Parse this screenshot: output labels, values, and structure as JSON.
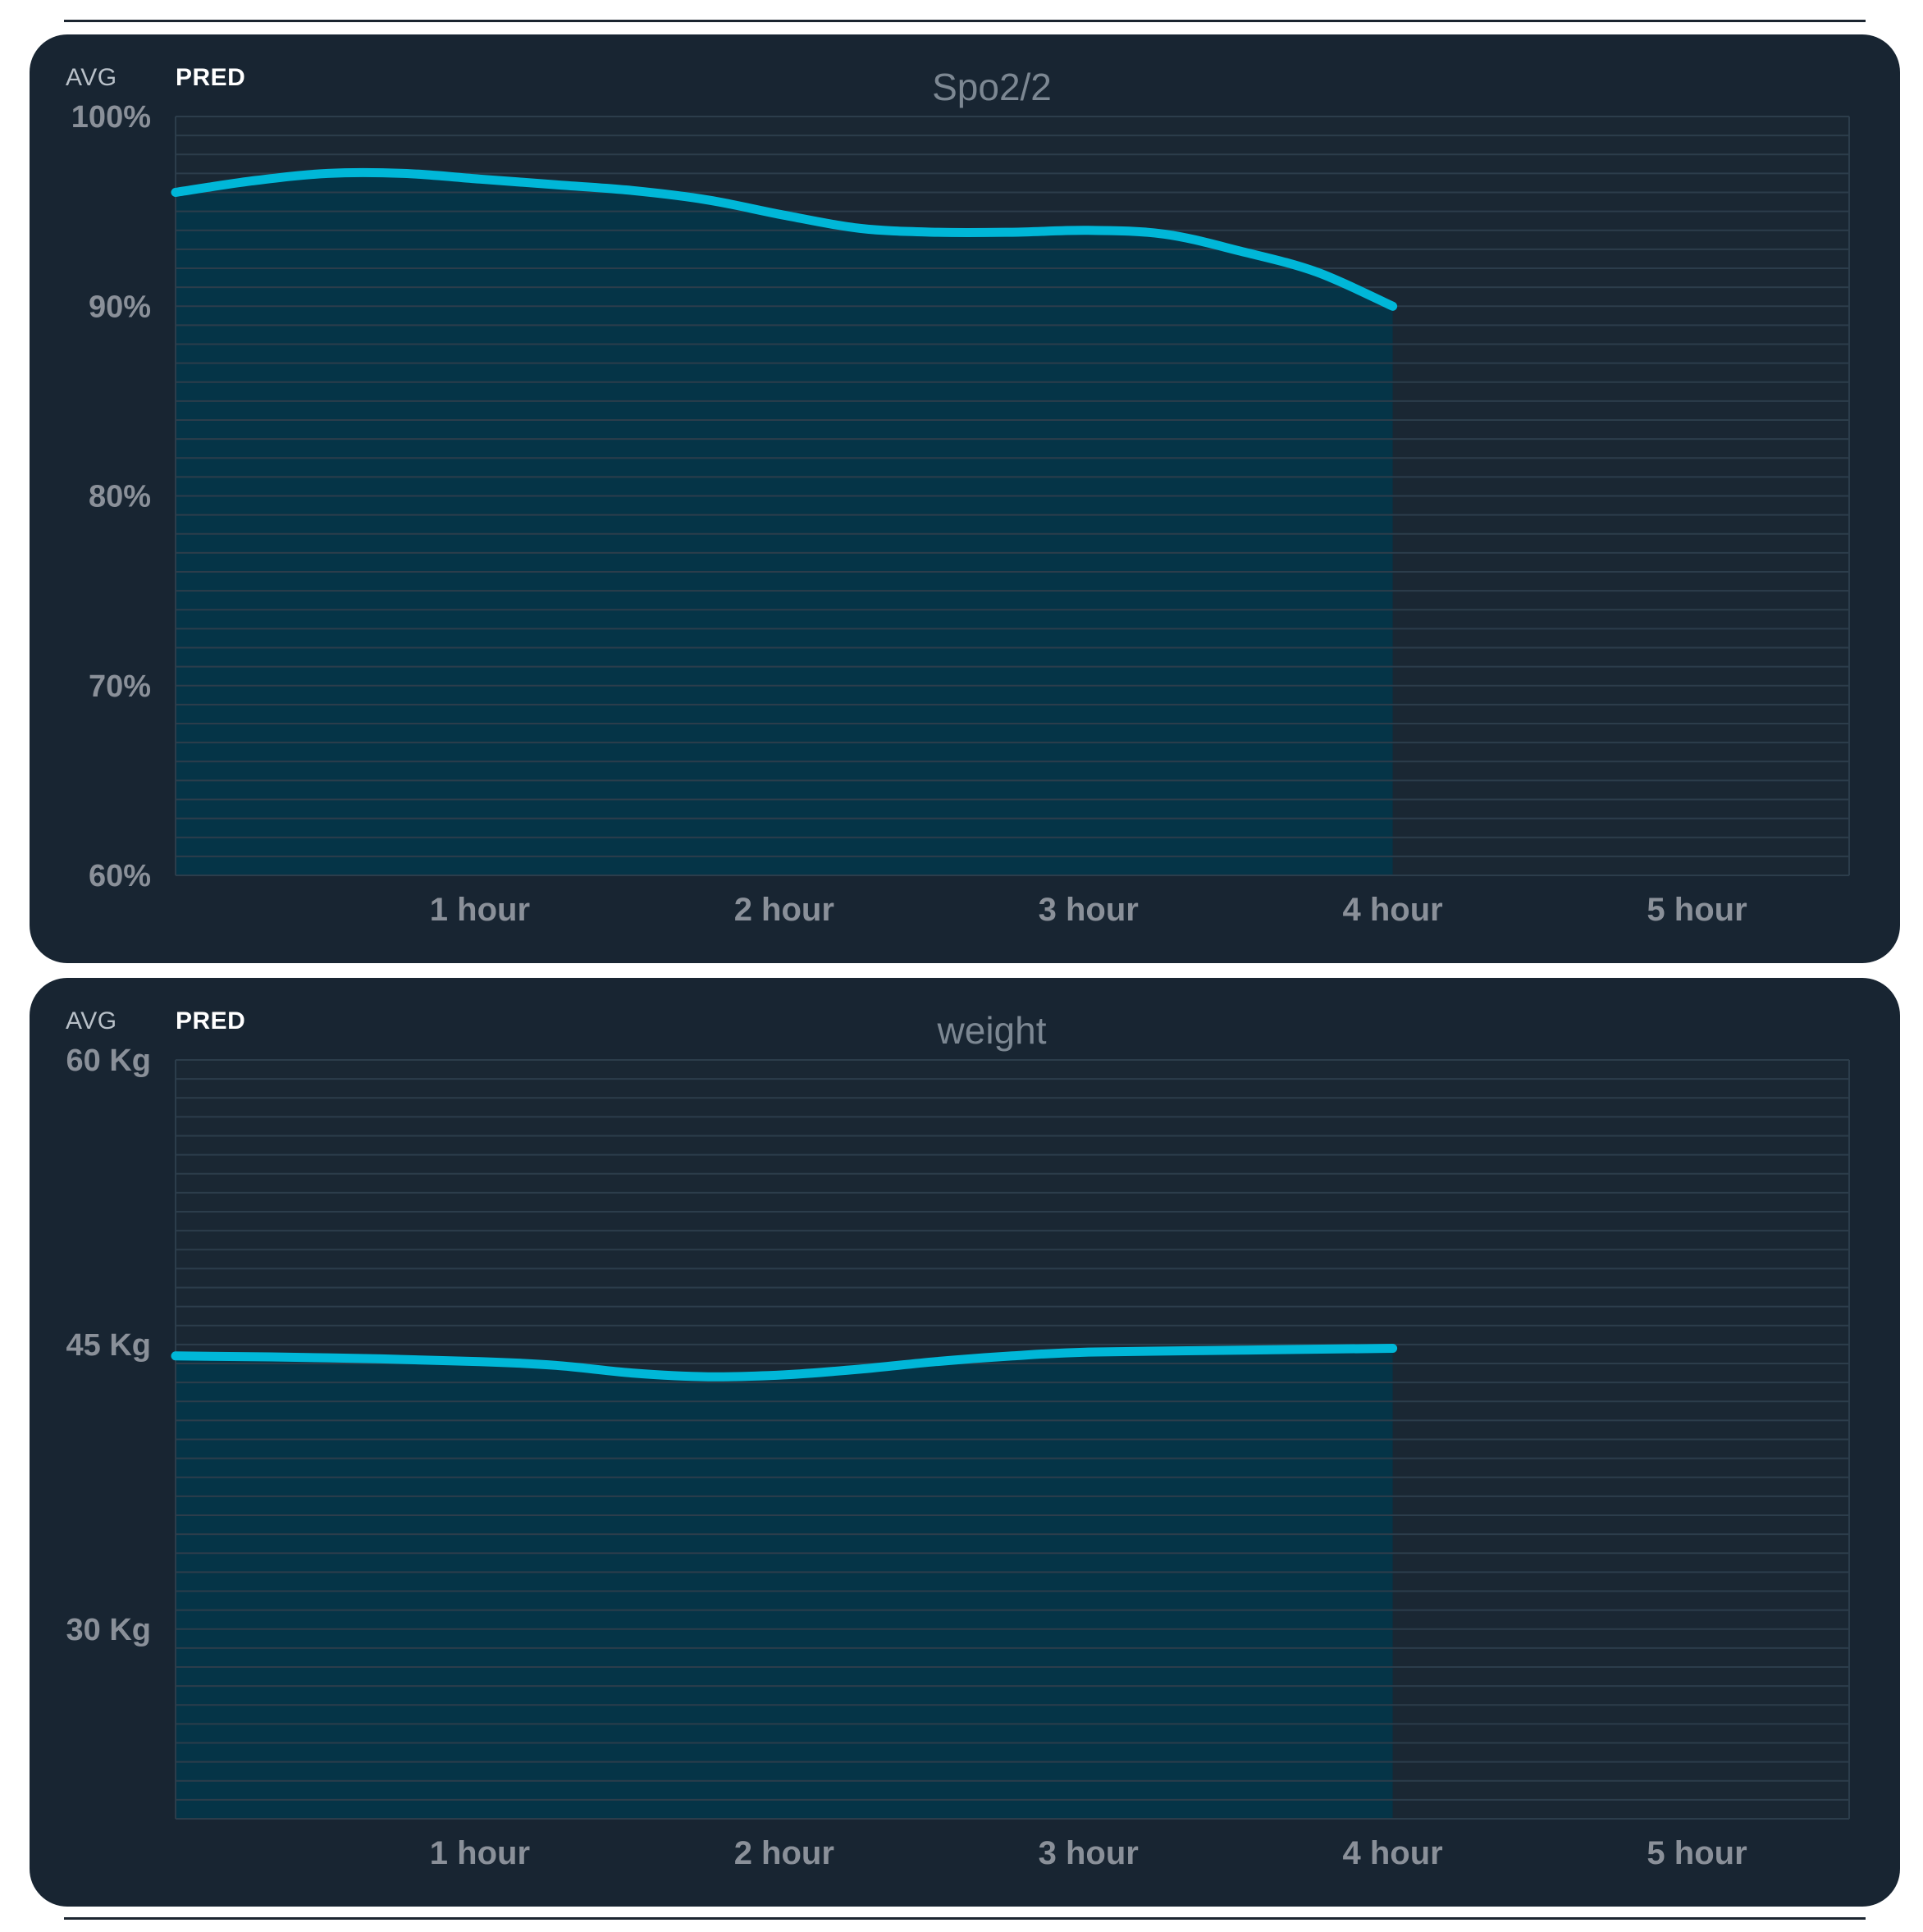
{
  "tabs": {
    "avg": "AVG",
    "pred": "PRED"
  },
  "colors": {
    "panel_bg": "#182532",
    "line": "#00b7d8",
    "fill": "#053447",
    "grid": "#2c3d4b",
    "label": "#8a9099",
    "title": "#7c8792"
  },
  "chart_data": [
    {
      "type": "area",
      "title": "Spo2/2",
      "x_tick_labels": [
        "1 hour",
        "2 hour",
        "3 hour",
        "4 hour",
        "5 hour"
      ],
      "x_ticks": [
        1,
        2,
        3,
        4,
        5
      ],
      "xlim": [
        0,
        5.5
      ],
      "ylim": [
        60,
        100
      ],
      "y_tick_values": [
        100,
        90,
        80,
        70,
        60
      ],
      "y_tick_labels": [
        "100%",
        "90%",
        "80%",
        "70%",
        "60%"
      ],
      "grid": true,
      "series": [
        {
          "x": [
            0,
            0.25,
            0.5,
            0.75,
            1.0,
            1.25,
            1.5,
            1.75,
            2.0,
            2.25,
            2.5,
            2.75,
            3.0,
            3.25,
            3.5,
            3.75,
            4.0
          ],
          "values": [
            96.0,
            96.6,
            97.0,
            97.0,
            96.7,
            96.4,
            96.1,
            95.6,
            94.8,
            94.1,
            93.9,
            93.9,
            94.0,
            93.8,
            92.9,
            91.8,
            90.0
          ]
        }
      ]
    },
    {
      "type": "area",
      "title": "weight",
      "x_tick_labels": [
        "1 hour",
        "2 hour",
        "3 hour",
        "4 hour",
        "5 hour"
      ],
      "x_ticks": [
        1,
        2,
        3,
        4,
        5
      ],
      "xlim": [
        0,
        5.5
      ],
      "ylim": [
        20,
        60
      ],
      "y_tick_values": [
        60,
        45,
        30
      ],
      "y_tick_labels": [
        "60 Kg",
        "45 Kg",
        "30 Kg"
      ],
      "grid": true,
      "series": [
        {
          "x": [
            0,
            0.5,
            1.0,
            1.25,
            1.5,
            1.75,
            2.0,
            2.25,
            2.5,
            2.75,
            3.0,
            3.5,
            4.0
          ],
          "values": [
            44.4,
            44.3,
            44.1,
            43.9,
            43.5,
            43.3,
            43.4,
            43.7,
            44.1,
            44.4,
            44.6,
            44.7,
            44.8
          ]
        }
      ]
    }
  ]
}
